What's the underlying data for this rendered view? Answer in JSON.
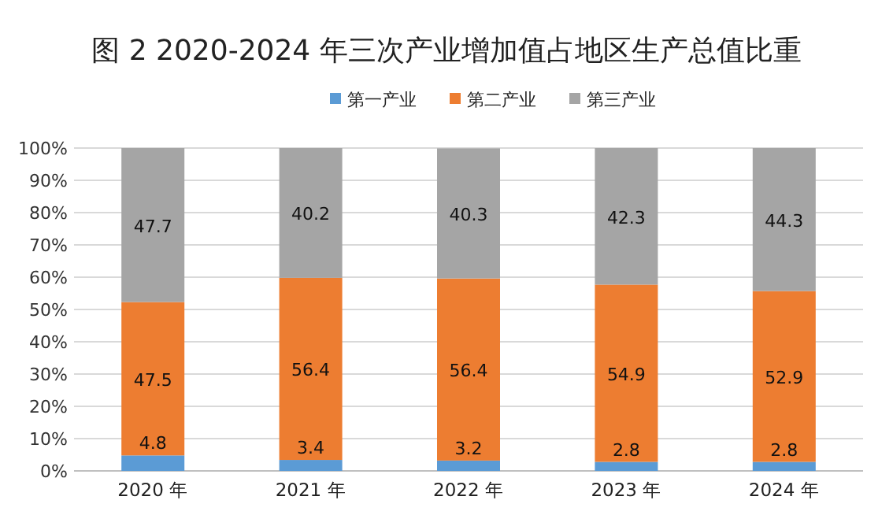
{
  "chart_data": {
    "type": "bar",
    "title": "图 2 2020-2024 年三次产业增加值占地区生产总值比重",
    "categories": [
      "2020 年",
      "2021 年",
      "2022 年",
      "2023 年",
      "2024 年"
    ],
    "stacked": true,
    "data_labels": true,
    "legend": "top",
    "grid": "y",
    "ylim": [
      0,
      100
    ],
    "yticks": [
      {
        "value": 0,
        "label": "0%"
      },
      {
        "value": 10,
        "label": "10%"
      },
      {
        "value": 20,
        "label": "20%"
      },
      {
        "value": 30,
        "label": "30%"
      },
      {
        "value": 40,
        "label": "40%"
      },
      {
        "value": 50,
        "label": "50%"
      },
      {
        "value": 60,
        "label": "60%"
      },
      {
        "value": 70,
        "label": "70%"
      },
      {
        "value": 80,
        "label": "80%"
      },
      {
        "value": 90,
        "label": "90%"
      },
      {
        "value": 100,
        "label": "100%"
      }
    ],
    "series": [
      {
        "name": "第一产业",
        "color": "#5b9bd5",
        "values": [
          4.8,
          3.4,
          3.2,
          2.8,
          2.8
        ]
      },
      {
        "name": "第二产业",
        "color": "#ed7d31",
        "values": [
          47.5,
          56.4,
          56.4,
          54.9,
          52.9
        ]
      },
      {
        "name": "第三产业",
        "color": "#a5a5a5",
        "values": [
          47.7,
          40.2,
          40.3,
          42.3,
          44.3
        ]
      }
    ]
  }
}
